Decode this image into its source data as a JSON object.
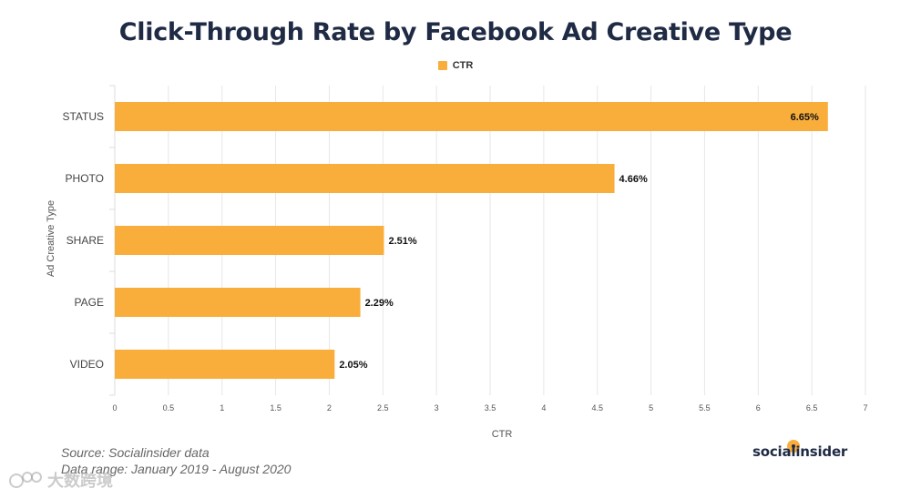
{
  "title": "Click-Through Rate by Facebook Ad Creative Type",
  "legend": {
    "label": "CTR",
    "color": "#f9ae3c"
  },
  "chart_data": {
    "type": "bar",
    "orientation": "horizontal",
    "categories": [
      "STATUS",
      "PHOTO",
      "SHARE",
      "PAGE",
      "VIDEO"
    ],
    "values": [
      6.65,
      4.66,
      2.51,
      2.29,
      2.05
    ],
    "data_labels": [
      "6.65%",
      "4.66%",
      "2.51%",
      "2.29%",
      "2.05%"
    ],
    "series": [
      {
        "name": "CTR",
        "values": [
          6.65,
          4.66,
          2.51,
          2.29,
          2.05
        ]
      }
    ],
    "xlabel": "CTR",
    "ylabel": "Ad Creative Type",
    "xlim": [
      0,
      7
    ],
    "xticks": [
      "0",
      "0.5",
      "1",
      "1.5",
      "2",
      "2.5",
      "3",
      "3.5",
      "4",
      "4.5",
      "5",
      "5.5",
      "6",
      "6.5",
      "7"
    ],
    "grid": true,
    "legend_position": "top-center",
    "bar_color": "#f9ae3c"
  },
  "footer": {
    "source": "Source: Socialinsider data",
    "range": "Data range: January 2019 - August 2020"
  },
  "brand": "socialinsider",
  "watermark": "大数跨境"
}
